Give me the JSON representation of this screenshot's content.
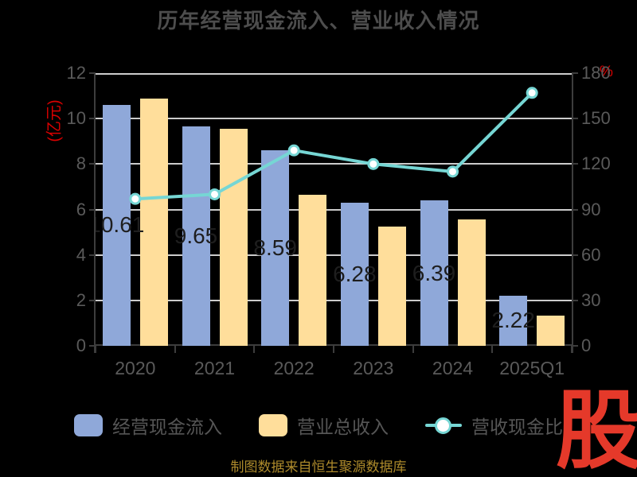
{
  "title": {
    "text": "历年经营现金流入、营业收入情况",
    "color": "#4d4d4d"
  },
  "chart_data": {
    "type": "bar+line",
    "categories": [
      "2020",
      "2021",
      "2022",
      "2023",
      "2024",
      "2025Q1"
    ],
    "series": [
      {
        "name": "经营现金流入",
        "type": "bar",
        "axis": "left",
        "color": "#8fa8d9",
        "values": [
          10.61,
          9.65,
          8.59,
          6.28,
          6.39,
          2.22
        ],
        "labels": [
          "10.61",
          "9.65",
          "8.59",
          "6.28",
          "6.39",
          "2.22"
        ]
      },
      {
        "name": "营业总收入",
        "type": "bar",
        "axis": "left",
        "color": "#ffde9b",
        "values": [
          10.89,
          9.55,
          6.65,
          5.25,
          5.55,
          1.33
        ]
      },
      {
        "name": "营收现金比",
        "type": "line",
        "axis": "right",
        "color": "#76d6d4",
        "values": [
          97,
          100,
          129,
          120,
          115,
          167
        ]
      }
    ],
    "left_axis": {
      "title": "(亿元)",
      "title_color": "#d90000",
      "min": 0,
      "max": 12,
      "step": 2,
      "ticks": [
        "0",
        "2",
        "4",
        "6",
        "8",
        "10",
        "12"
      ]
    },
    "right_axis": {
      "title": "%",
      "title_color": "#d90000",
      "min": 0,
      "max": 180,
      "step": 30,
      "ticks": [
        "0",
        "30",
        "60",
        "90",
        "120",
        "150",
        "180"
      ]
    },
    "grid": true,
    "legend_position": "bottom"
  },
  "legend": {
    "items": [
      {
        "label": "经营现金流入",
        "marker": "square",
        "color": "#8fa8d9"
      },
      {
        "label": "营业总收入",
        "marker": "square",
        "color": "#ffde9b"
      },
      {
        "label": "营收现金比",
        "marker": "line-dot",
        "color": "#76d6d4"
      }
    ]
  },
  "footer": {
    "source_text": "制图数据来自恒生聚源数据库",
    "source_color": "#ad8a2b"
  },
  "watermark": {
    "text": "股",
    "color": "#e5392a"
  }
}
